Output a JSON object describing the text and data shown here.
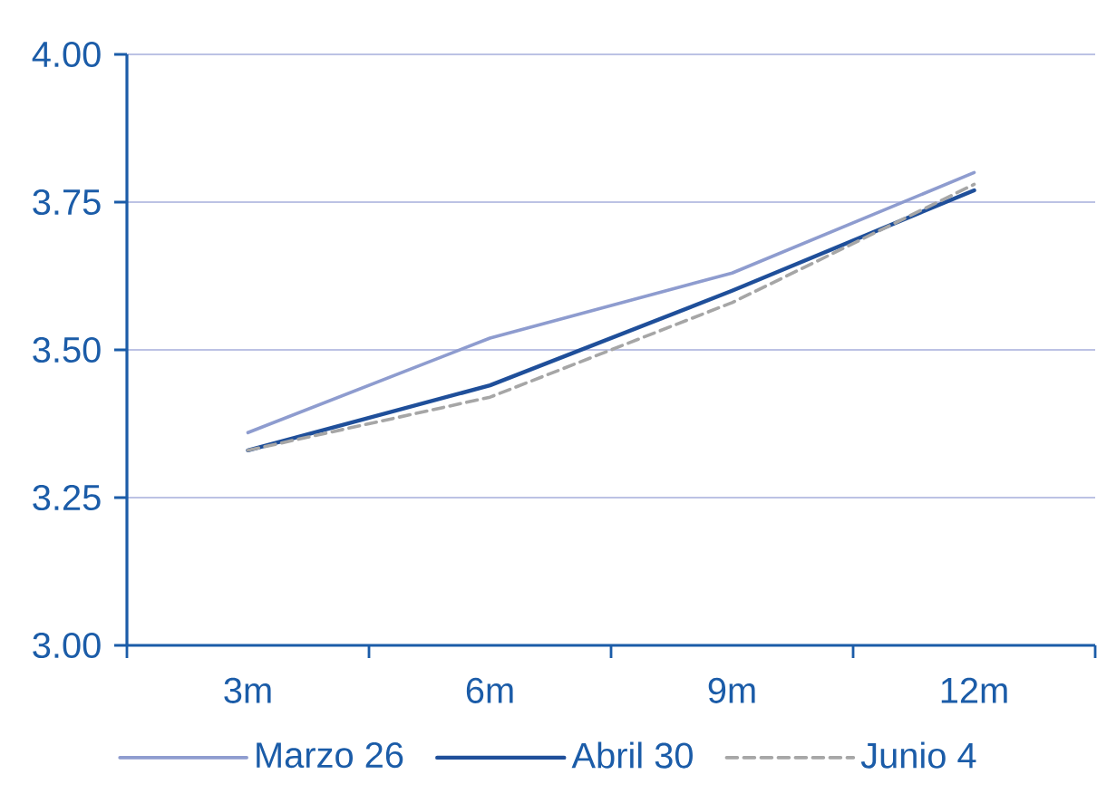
{
  "chart_data": {
    "type": "line",
    "categories": [
      "3m",
      "6m",
      "9m",
      "12m"
    ],
    "series": [
      {
        "name": "Marzo 26",
        "color": "#8e9ccf",
        "values": [
          3.36,
          3.52,
          3.63,
          3.8
        ],
        "line_style": "solid"
      },
      {
        "name": "Abril 30",
        "color": "#1f4f9a",
        "values": [
          3.33,
          3.44,
          3.6,
          3.77
        ],
        "line_style": "solid"
      },
      {
        "name": "Junio 4",
        "color": "#a6a6a6",
        "values": [
          3.33,
          3.42,
          3.58,
          3.78
        ],
        "line_style": "dashed"
      }
    ],
    "ylim": [
      3,
      4
    ],
    "yticks": [
      {
        "value": 3,
        "label": "3.00"
      },
      {
        "value": 3.25,
        "label": "3.25"
      },
      {
        "value": 3.5,
        "label": "3.50"
      },
      {
        "value": 3.75,
        "label": "3.75"
      },
      {
        "value": 4,
        "label": "4.00"
      }
    ],
    "grid": "y",
    "legend": "bottom"
  }
}
